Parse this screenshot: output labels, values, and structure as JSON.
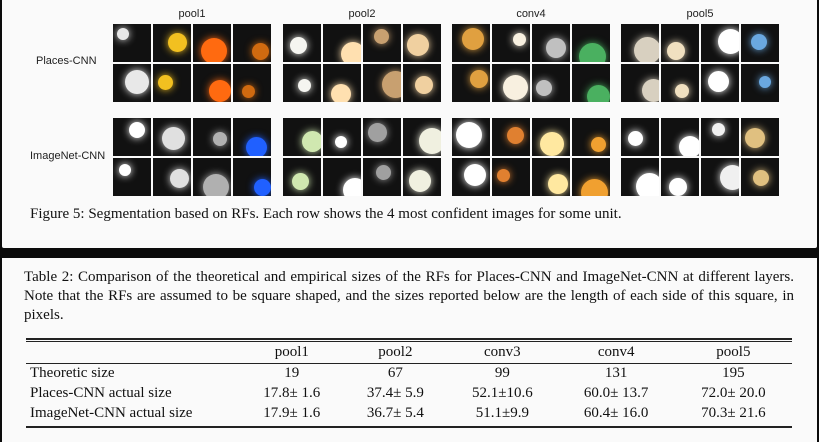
{
  "figure": {
    "columns": [
      "pool1",
      "pool2",
      "conv4",
      "pool5"
    ],
    "rows": [
      "Places-CNN",
      "ImageNet-CNN"
    ],
    "caption": "Figure 5: Segmentation based on RFs. Each row shows the 4 most confident images for some unit."
  },
  "table": {
    "caption": "Table 2: Comparison of the theoretical and empirical sizes of the RFs for Places-CNN and ImageNet-CNN at different layers. Note that the RFs are assumed to be square shaped, and the sizes reported below are the length of each side of this square, in pixels.",
    "header": [
      "",
      "pool1",
      "pool2",
      "conv3",
      "conv4",
      "pool5"
    ],
    "rows": [
      [
        "Theoretic size",
        "19",
        "67",
        "99",
        "131",
        "195"
      ],
      [
        "Places-CNN actual size",
        "17.8± 1.6",
        "37.4± 5.9",
        "52.1±10.6",
        "60.0± 13.7",
        "72.0± 20.0"
      ],
      [
        "ImageNet-CNN actual size",
        "17.9± 1.6",
        "36.7± 5.4",
        "51.1±9.9",
        "60.4± 16.0",
        "70.3± 21.6"
      ]
    ]
  }
}
